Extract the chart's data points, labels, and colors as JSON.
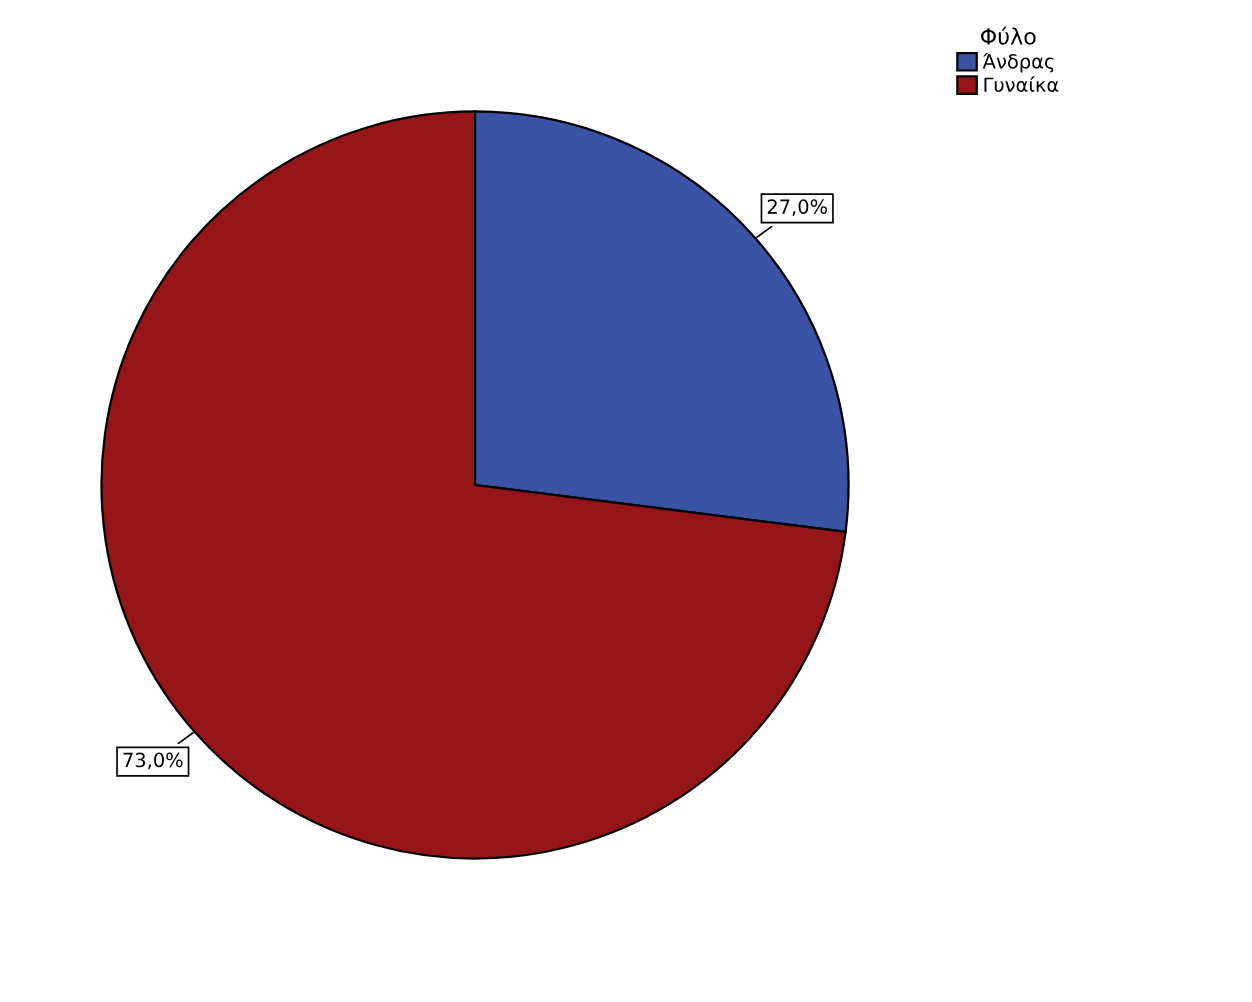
{
  "chart_data": {
    "type": "pie",
    "legend_title": "Φύλο",
    "categories": [
      "Άνδρας",
      "Γυναίκα"
    ],
    "values": [
      27.0,
      73.0
    ],
    "colors": [
      "#3a53a4",
      "#961518"
    ],
    "value_labels": [
      "27,0%",
      "73,0%"
    ],
    "legend": "top right"
  }
}
